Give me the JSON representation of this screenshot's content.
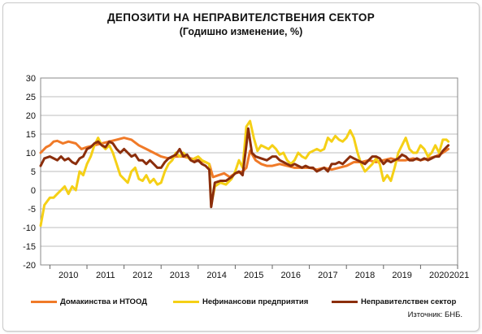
{
  "chart_data": {
    "type": "line",
    "title": "ДЕПОЗИТИ НА НЕПРАВИТЕЛСТВЕНИЯ  СЕКТОР",
    "subtitle": "(Годишно  изменение, %)",
    "source": "Източник: БНБ.",
    "ylim": [
      -20,
      30
    ],
    "yticks": [
      "30",
      "25",
      "20",
      "15",
      "10",
      "5",
      "0",
      "-5",
      "-10",
      "-15",
      "-20"
    ],
    "xlim": [
      2009.75,
      2021.0
    ],
    "xticks": [
      "2010",
      "2011",
      "2012",
      "2013",
      "2014",
      "2015",
      "2016",
      "2017",
      "2018",
      "2019",
      "2020",
      "2021"
    ],
    "grid": "horizontal",
    "legend": "bottom",
    "series": [
      {
        "name": "Домакинства  и НТООД",
        "color": "#f07a28",
        "points": [
          [
            2009.75,
            10
          ],
          [
            2009.9,
            11.5
          ],
          [
            2010.0,
            12
          ],
          [
            2010.1,
            13
          ],
          [
            2010.2,
            13.2
          ],
          [
            2010.35,
            12.5
          ],
          [
            2010.5,
            13
          ],
          [
            2010.7,
            12.5
          ],
          [
            2010.85,
            11
          ],
          [
            2011.0,
            11.5
          ],
          [
            2011.2,
            12
          ],
          [
            2011.4,
            12.5
          ],
          [
            2011.6,
            13
          ],
          [
            2011.8,
            13.5
          ],
          [
            2012.0,
            14
          ],
          [
            2012.2,
            13.5
          ],
          [
            2012.4,
            12
          ],
          [
            2012.6,
            11
          ],
          [
            2012.8,
            10
          ],
          [
            2013.0,
            9
          ],
          [
            2013.2,
            8.5
          ],
          [
            2013.4,
            9
          ],
          [
            2013.6,
            9
          ],
          [
            2013.8,
            8.5
          ],
          [
            2014.0,
            8
          ],
          [
            2014.2,
            7.5
          ],
          [
            2014.3,
            7
          ],
          [
            2014.4,
            3.5
          ],
          [
            2014.55,
            4
          ],
          [
            2014.7,
            4.5
          ],
          [
            2014.85,
            3.5
          ],
          [
            2015.0,
            4.5
          ],
          [
            2015.2,
            5
          ],
          [
            2015.3,
            6
          ],
          [
            2015.4,
            10.5
          ],
          [
            2015.55,
            8
          ],
          [
            2015.7,
            7
          ],
          [
            2015.85,
            6.5
          ],
          [
            2016.0,
            6.5
          ],
          [
            2016.2,
            7
          ],
          [
            2016.4,
            6.5
          ],
          [
            2016.6,
            6
          ],
          [
            2016.8,
            6
          ],
          [
            2017.0,
            6
          ],
          [
            2017.2,
            5.5
          ],
          [
            2017.4,
            6
          ],
          [
            2017.6,
            5.5
          ],
          [
            2017.8,
            6
          ],
          [
            2018.0,
            6.5
          ],
          [
            2018.2,
            7.5
          ],
          [
            2018.4,
            7.5
          ],
          [
            2018.6,
            8
          ],
          [
            2018.8,
            7.5
          ],
          [
            2019.0,
            8
          ],
          [
            2019.2,
            8.5
          ],
          [
            2019.4,
            8
          ],
          [
            2019.6,
            8
          ],
          [
            2019.8,
            8.5
          ],
          [
            2020.0,
            8
          ],
          [
            2020.2,
            8.5
          ],
          [
            2020.4,
            9
          ],
          [
            2020.6,
            10
          ],
          [
            2020.75,
            11
          ]
        ]
      },
      {
        "name": "Нефинансови предприятия",
        "color": "#f5d016",
        "points": [
          [
            2009.75,
            -9.5
          ],
          [
            2009.85,
            -4
          ],
          [
            2010.0,
            -2
          ],
          [
            2010.1,
            -2
          ],
          [
            2010.2,
            -1
          ],
          [
            2010.3,
            0
          ],
          [
            2010.4,
            1
          ],
          [
            2010.5,
            -1
          ],
          [
            2010.6,
            1
          ],
          [
            2010.7,
            0
          ],
          [
            2010.8,
            5
          ],
          [
            2010.9,
            4
          ],
          [
            2011.0,
            7
          ],
          [
            2011.1,
            9
          ],
          [
            2011.2,
            12
          ],
          [
            2011.3,
            14
          ],
          [
            2011.4,
            12
          ],
          [
            2011.5,
            11
          ],
          [
            2011.6,
            12
          ],
          [
            2011.7,
            10
          ],
          [
            2011.8,
            7
          ],
          [
            2011.9,
            4
          ],
          [
            2012.0,
            3
          ],
          [
            2012.1,
            2
          ],
          [
            2012.2,
            5
          ],
          [
            2012.3,
            6
          ],
          [
            2012.4,
            3
          ],
          [
            2012.5,
            2.5
          ],
          [
            2012.6,
            4
          ],
          [
            2012.7,
            2
          ],
          [
            2012.8,
            3
          ],
          [
            2012.9,
            1.5
          ],
          [
            2013.0,
            2
          ],
          [
            2013.1,
            5
          ],
          [
            2013.2,
            7
          ],
          [
            2013.3,
            8
          ],
          [
            2013.4,
            10
          ],
          [
            2013.5,
            9
          ],
          [
            2013.6,
            10
          ],
          [
            2013.7,
            9
          ],
          [
            2013.8,
            8
          ],
          [
            2013.9,
            8.5
          ],
          [
            2014.0,
            9
          ],
          [
            2014.1,
            8
          ],
          [
            2014.2,
            7.5
          ],
          [
            2014.3,
            7
          ],
          [
            2014.35,
            -4
          ],
          [
            2014.45,
            1
          ],
          [
            2014.6,
            2
          ],
          [
            2014.75,
            1.5
          ],
          [
            2014.9,
            3
          ],
          [
            2015.0,
            5
          ],
          [
            2015.1,
            8
          ],
          [
            2015.2,
            6
          ],
          [
            2015.3,
            17
          ],
          [
            2015.4,
            18.5
          ],
          [
            2015.5,
            14
          ],
          [
            2015.6,
            10.5
          ],
          [
            2015.7,
            12
          ],
          [
            2015.8,
            11.5
          ],
          [
            2015.9,
            11
          ],
          [
            2016.0,
            12
          ],
          [
            2016.1,
            11
          ],
          [
            2016.2,
            9.5
          ],
          [
            2016.3,
            10
          ],
          [
            2016.4,
            8
          ],
          [
            2016.5,
            7
          ],
          [
            2016.6,
            8
          ],
          [
            2016.7,
            10
          ],
          [
            2016.8,
            9
          ],
          [
            2016.9,
            8.5
          ],
          [
            2017.0,
            10
          ],
          [
            2017.1,
            10.5
          ],
          [
            2017.2,
            11
          ],
          [
            2017.3,
            10.5
          ],
          [
            2017.4,
            11
          ],
          [
            2017.5,
            14
          ],
          [
            2017.6,
            13
          ],
          [
            2017.7,
            14.5
          ],
          [
            2017.8,
            13.5
          ],
          [
            2017.9,
            13
          ],
          [
            2018.0,
            14
          ],
          [
            2018.1,
            16
          ],
          [
            2018.2,
            14
          ],
          [
            2018.3,
            10
          ],
          [
            2018.4,
            7
          ],
          [
            2018.5,
            5
          ],
          [
            2018.6,
            6
          ],
          [
            2018.7,
            7
          ],
          [
            2018.8,
            8.5
          ],
          [
            2018.9,
            7
          ],
          [
            2019.0,
            2.5
          ],
          [
            2019.1,
            4
          ],
          [
            2019.2,
            2.5
          ],
          [
            2019.3,
            6
          ],
          [
            2019.4,
            10
          ],
          [
            2019.5,
            12
          ],
          [
            2019.6,
            14
          ],
          [
            2019.7,
            11
          ],
          [
            2019.8,
            10
          ],
          [
            2019.9,
            10
          ],
          [
            2020.0,
            12
          ],
          [
            2020.1,
            11
          ],
          [
            2020.2,
            9
          ],
          [
            2020.3,
            10
          ],
          [
            2020.4,
            12
          ],
          [
            2020.5,
            10
          ],
          [
            2020.6,
            13.5
          ],
          [
            2020.7,
            13.5
          ],
          [
            2020.75,
            13
          ]
        ]
      },
      {
        "name": "Неправителствен  сектор",
        "color": "#8b2e0c",
        "points": [
          [
            2009.75,
            6.5
          ],
          [
            2009.85,
            8.5
          ],
          [
            2010.0,
            9
          ],
          [
            2010.1,
            8.5
          ],
          [
            2010.2,
            8
          ],
          [
            2010.3,
            9
          ],
          [
            2010.4,
            8
          ],
          [
            2010.5,
            8.5
          ],
          [
            2010.6,
            7.5
          ],
          [
            2010.7,
            7
          ],
          [
            2010.8,
            8.5
          ],
          [
            2010.9,
            9
          ],
          [
            2011.0,
            11
          ],
          [
            2011.1,
            11.5
          ],
          [
            2011.2,
            12.5
          ],
          [
            2011.3,
            13
          ],
          [
            2011.4,
            12
          ],
          [
            2011.5,
            11.5
          ],
          [
            2011.6,
            13
          ],
          [
            2011.7,
            12.5
          ],
          [
            2011.8,
            11
          ],
          [
            2011.9,
            10
          ],
          [
            2012.0,
            11
          ],
          [
            2012.1,
            10
          ],
          [
            2012.2,
            9
          ],
          [
            2012.3,
            9.5
          ],
          [
            2012.4,
            8
          ],
          [
            2012.5,
            8
          ],
          [
            2012.6,
            7
          ],
          [
            2012.7,
            8
          ],
          [
            2012.8,
            7
          ],
          [
            2012.9,
            6
          ],
          [
            2013.0,
            6
          ],
          [
            2013.1,
            7.5
          ],
          [
            2013.2,
            8.5
          ],
          [
            2013.3,
            9
          ],
          [
            2013.4,
            9.5
          ],
          [
            2013.5,
            11
          ],
          [
            2013.6,
            9
          ],
          [
            2013.7,
            9.5
          ],
          [
            2013.8,
            8
          ],
          [
            2013.9,
            7.5
          ],
          [
            2014.0,
            8
          ],
          [
            2014.1,
            7
          ],
          [
            2014.2,
            6.5
          ],
          [
            2014.3,
            5.5
          ],
          [
            2014.35,
            -4.5
          ],
          [
            2014.45,
            2
          ],
          [
            2014.6,
            2.5
          ],
          [
            2014.75,
            2.5
          ],
          [
            2014.9,
            3.5
          ],
          [
            2015.0,
            4.5
          ],
          [
            2015.1,
            5
          ],
          [
            2015.2,
            4
          ],
          [
            2015.3,
            12
          ],
          [
            2015.35,
            16.5
          ],
          [
            2015.45,
            10
          ],
          [
            2015.55,
            9
          ],
          [
            2015.7,
            8.5
          ],
          [
            2015.85,
            8
          ],
          [
            2016.0,
            9
          ],
          [
            2016.1,
            9
          ],
          [
            2016.2,
            8
          ],
          [
            2016.3,
            7.5
          ],
          [
            2016.4,
            7
          ],
          [
            2016.5,
            6.5
          ],
          [
            2016.6,
            7
          ],
          [
            2016.7,
            6.5
          ],
          [
            2016.8,
            6
          ],
          [
            2016.9,
            6.5
          ],
          [
            2017.0,
            6
          ],
          [
            2017.1,
            6
          ],
          [
            2017.2,
            5
          ],
          [
            2017.3,
            5.5
          ],
          [
            2017.4,
            6
          ],
          [
            2017.5,
            5
          ],
          [
            2017.6,
            7
          ],
          [
            2017.7,
            7
          ],
          [
            2017.8,
            7.5
          ],
          [
            2017.9,
            7
          ],
          [
            2018.0,
            8
          ],
          [
            2018.1,
            9
          ],
          [
            2018.2,
            8.5
          ],
          [
            2018.3,
            8
          ],
          [
            2018.4,
            7.5
          ],
          [
            2018.5,
            7
          ],
          [
            2018.6,
            8
          ],
          [
            2018.7,
            9
          ],
          [
            2018.8,
            9
          ],
          [
            2018.9,
            8.5
          ],
          [
            2019.0,
            7
          ],
          [
            2019.1,
            8
          ],
          [
            2019.2,
            7.5
          ],
          [
            2019.3,
            8
          ],
          [
            2019.4,
            8.5
          ],
          [
            2019.5,
            9.5
          ],
          [
            2019.6,
            9
          ],
          [
            2019.7,
            8
          ],
          [
            2019.8,
            8
          ],
          [
            2019.9,
            8.5
          ],
          [
            2020.0,
            8
          ],
          [
            2020.1,
            8.5
          ],
          [
            2020.2,
            8
          ],
          [
            2020.3,
            8.5
          ],
          [
            2020.4,
            9
          ],
          [
            2020.5,
            9
          ],
          [
            2020.6,
            10.5
          ],
          [
            2020.7,
            11.5
          ],
          [
            2020.75,
            12
          ]
        ]
      }
    ]
  }
}
